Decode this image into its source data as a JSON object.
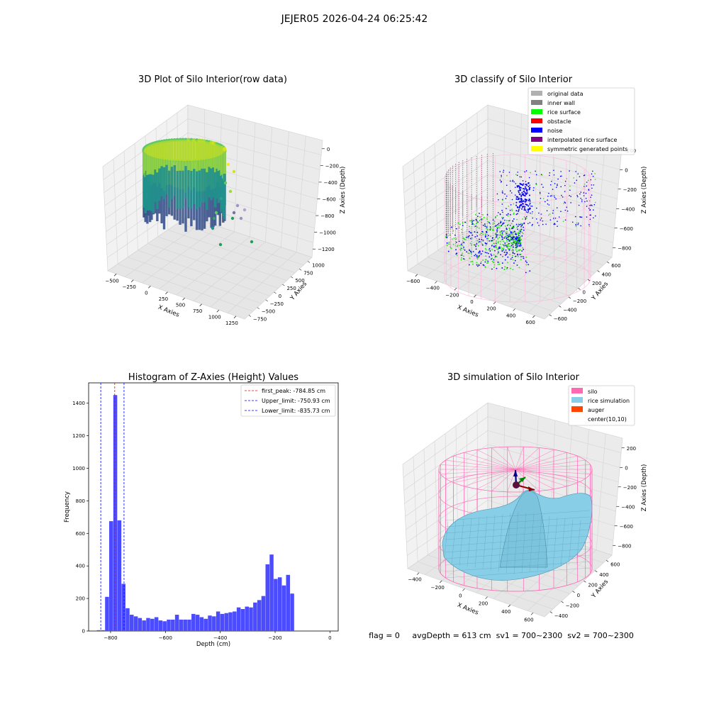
{
  "figure": {
    "suptitle": "JEJER05 2026-04-24 06:25:42",
    "footer": "flag = 0     avgDepth = 613 cm  sv1 = 700~2300  sv2 = 700~2300"
  },
  "colors": {
    "rice_green": "#28e010",
    "noise_blue": "#0000ff",
    "silo_pink": "#ff69b4",
    "rice_sim": "#87cee6",
    "auger": "#ff4500",
    "hist_blue": "#4b4bff",
    "pane": "#f2f2f2",
    "grid": "#d4d4d4"
  },
  "chart_data": [
    {
      "id": "raw",
      "type": "scatter",
      "title": "3D Plot of Silo Interior(row data)",
      "xlabel": "X Axies",
      "ylabel": "Y Axies",
      "zlabel": "Z Axies (Depth)",
      "x_ticks": [
        "−500",
        "−250",
        "0",
        "250",
        "500",
        "750",
        "1000",
        "1250"
      ],
      "y_ticks": [
        "−750",
        "−500",
        "−250",
        "0",
        "250",
        "500",
        "750",
        "1000"
      ],
      "z_ticks": [
        "0",
        "−200",
        "−400",
        "−600",
        "−800",
        "−1000",
        "−1200"
      ],
      "colormap": "viridis"
    },
    {
      "id": "classify",
      "type": "scatter",
      "title": "3D classify of Silo Interior",
      "xlabel": "X Axies",
      "ylabel": "Y Axies",
      "zlabel": "Z Axies (Depth)",
      "x_ticks": [
        "−600",
        "−400",
        "−200",
        "0",
        "200",
        "400",
        "600"
      ],
      "y_ticks": [
        "−600",
        "−400",
        "−200",
        "0",
        "200",
        "400",
        "600"
      ],
      "z_ticks": [
        "200",
        "0",
        "−200",
        "−400",
        "−600",
        "−800"
      ],
      "legend": [
        {
          "label": "original data",
          "color": "#b0b0b0"
        },
        {
          "label": "inner wall",
          "color": "#808080"
        },
        {
          "label": "rice surface",
          "color": "#00ff00"
        },
        {
          "label": "obstacle",
          "color": "#ff0000"
        },
        {
          "label": "noise",
          "color": "#0000ff"
        },
        {
          "label": "interpolated rice surface",
          "color": "#800080"
        },
        {
          "label": "symmetric generated points",
          "color": "#ffff00"
        }
      ]
    },
    {
      "id": "histogram",
      "type": "bar",
      "title": "Histogram of Z-Axies (Height) Values",
      "xlabel": "Depth (cm)",
      "ylabel": "Frequency",
      "xlim": [
        -880,
        30
      ],
      "ylim": [
        0,
        1525
      ],
      "x_ticks": [
        -800,
        -600,
        -400,
        -200,
        0
      ],
      "x_tick_labels": [
        "−800",
        "−600",
        "−400",
        "−200",
        "0"
      ],
      "y_ticks": [
        0,
        200,
        400,
        600,
        800,
        1000,
        1200,
        1400
      ],
      "bin_start": -850,
      "bin_width": 15,
      "values": [
        5,
        5,
        210,
        675,
        1450,
        680,
        290,
        140,
        100,
        90,
        80,
        65,
        80,
        75,
        85,
        65,
        60,
        70,
        70,
        100,
        70,
        70,
        70,
        105,
        100,
        85,
        75,
        95,
        90,
        120,
        105,
        110,
        115,
        120,
        145,
        135,
        150,
        145,
        175,
        190,
        215,
        410,
        470,
        320,
        330,
        280,
        345,
        230
      ],
      "lines": [
        {
          "label": "first_peak: -784.85 cm",
          "x": -784.85,
          "color": "#ff0000"
        },
        {
          "label": "Upper_limit: -750.93 cm",
          "x": -750.93,
          "color": "#0000ff"
        },
        {
          "label": "Lower_limit: -835.73 cm",
          "x": -835.73,
          "color": "#0000ff"
        }
      ]
    },
    {
      "id": "simulation",
      "type": "area",
      "title": "3D simulation of Silo Interior",
      "xlabel": "X Axies",
      "ylabel": "Y Axies",
      "zlabel": "Z Axies (Depth)",
      "x_ticks": [
        "−400",
        "−200",
        "0",
        "200",
        "400",
        "600"
      ],
      "y_ticks": [
        "−400",
        "−200",
        "0",
        "200",
        "400",
        "600"
      ],
      "z_ticks": [
        "200",
        "0",
        "−200",
        "−400",
        "−600",
        "−800"
      ],
      "legend": [
        {
          "label": "silo",
          "color": "#ff69b4"
        },
        {
          "label": "rice simulation",
          "color": "#87cee6"
        },
        {
          "label": "auger",
          "color": "#ff4500"
        },
        {
          "label": "center(10,10)",
          "color": "#ffffff"
        }
      ]
    }
  ]
}
